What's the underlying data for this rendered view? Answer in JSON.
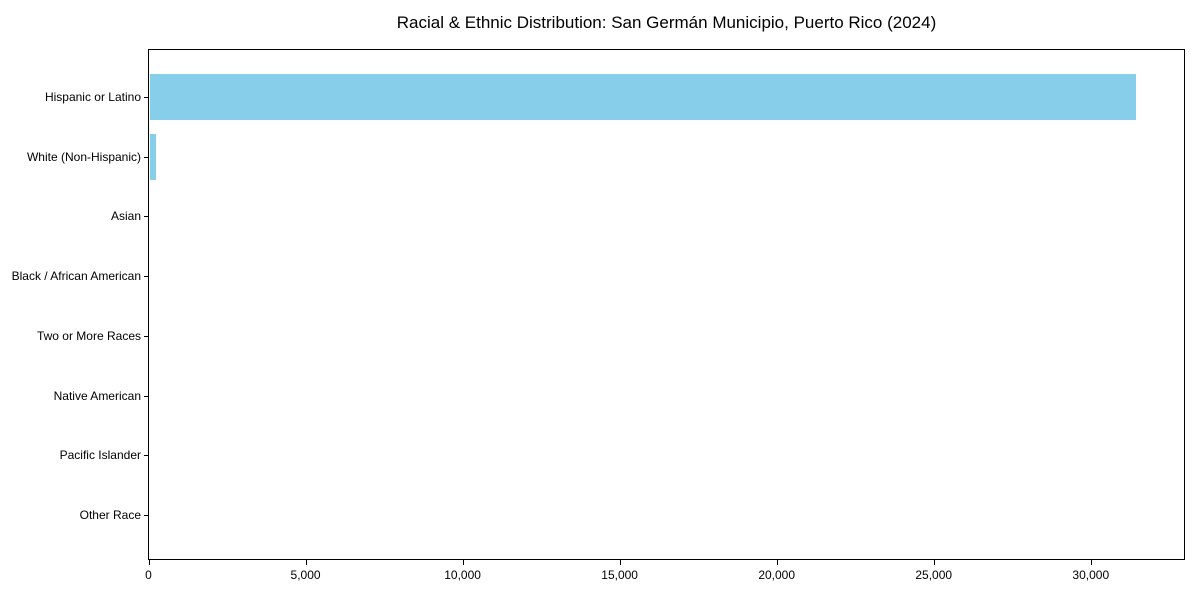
{
  "chart_data": {
    "type": "bar",
    "orientation": "horizontal",
    "title": "Racial & Ethnic Distribution: San Germán Municipio, Puerto Rico (2024)",
    "xlabel": "",
    "ylabel": "",
    "categories": [
      "Hispanic or Latino",
      "White (Non-Hispanic)",
      "Asian",
      "Black / African American",
      "Two or More Races",
      "Native American",
      "Pacific Islander",
      "Other Race"
    ],
    "values": [
      31450,
      245,
      30,
      0,
      0,
      0,
      0,
      0
    ],
    "xlim": [
      0,
      33000
    ],
    "x_ticks": [
      0,
      5000,
      10000,
      15000,
      20000,
      25000,
      30000
    ],
    "x_tick_labels": [
      "0",
      "5,000",
      "10,000",
      "15,000",
      "20,000",
      "25,000",
      "30,000"
    ],
    "bar_color": "#87CEEB",
    "axis_color": "#000000",
    "background_color": "#ffffff",
    "grid": false,
    "legend": null
  }
}
